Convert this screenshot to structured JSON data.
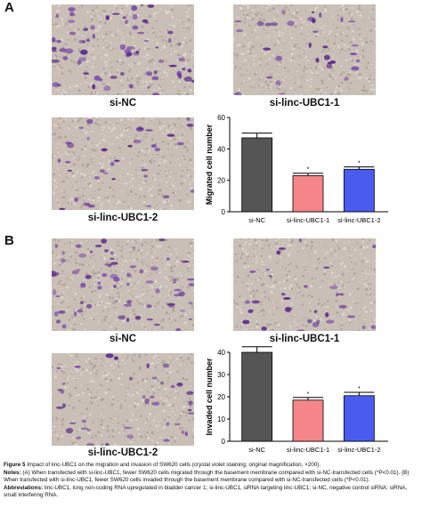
{
  "panels": {
    "A": {
      "letter": "A",
      "images": [
        {
          "label": "si-NC"
        },
        {
          "label": "si-linc-UBC1-1"
        },
        {
          "label": "si-linc-UBC1-2"
        }
      ]
    },
    "B": {
      "letter": "B",
      "images": [
        {
          "label": "si-NC"
        },
        {
          "label": "si-linc-UBC1-1"
        },
        {
          "label": "si-linc-UBC1-2"
        }
      ]
    }
  },
  "chart_data": [
    {
      "type": "bar",
      "panel": "A",
      "categories": [
        "si-NC",
        "si-linc-UBC1-1",
        "si-linc-UBC1-2"
      ],
      "values": [
        47,
        23,
        27
      ],
      "errors": [
        3,
        1.5,
        1.5
      ],
      "significance": [
        "",
        "*",
        "*"
      ],
      "ylabel": "Migrated cell number",
      "ylim": [
        0,
        60
      ],
      "yticks": [
        0,
        20,
        40,
        60
      ],
      "colors": [
        "#555555",
        "#f4868a",
        "#4a5cf0"
      ],
      "grid": false
    },
    {
      "type": "bar",
      "panel": "B",
      "categories": [
        "si-NC",
        "si-linc-UBC1-1",
        "si-linc-UBC1-2"
      ],
      "values": [
        40,
        18.5,
        20.5
      ],
      "errors": [
        2.5,
        1.2,
        1.5
      ],
      "significance": [
        "",
        "*",
        "*"
      ],
      "ylabel": "Invaded cell number",
      "ylim": [
        0,
        40
      ],
      "yticks": [
        0,
        10,
        20,
        30,
        40
      ],
      "colors": [
        "#555555",
        "#f4868a",
        "#4a5cf0"
      ],
      "grid": false
    }
  ],
  "caption": {
    "figure_label": "Figure 5",
    "figure_text": " Impact of linc-UBC1 on the migration and invasion of SW620 cells (crystal violet staining; original magnification, ×200).",
    "notes_label": "Notes:",
    "notes_text": " (A) When transfected with si-linc-UBC1, fewer SW620 cells migrated through the basement membrane compared with si-NC-transfected cells (*P<0.01). (B) When transfected with si-linc-UBC1, fewer SW620 cells invaded through the basement membrane compared with si-NC-transfected cells (*P<0.01).",
    "abbrev_label": "Abbreviations:",
    "abbrev_text": " linc-UBC1, long non-coding RNA upregulated in bladder cancer 1; si-linc-UBC1, siRNA targeting linc-UBC1; si-NC, negative control siRNA; siRNA, small interfering RNA."
  }
}
